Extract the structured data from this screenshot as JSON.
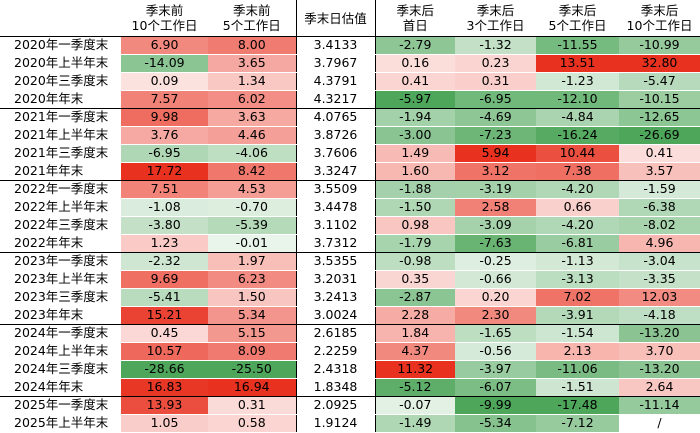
{
  "headers": [
    "",
    "季末前\n10个工作日",
    "季末前\n5个工作日",
    "季末日估值",
    "季末后\n首日",
    "季末后\n3个工作日",
    "季末后\n5个工作日",
    "季末后\n10个工作日"
  ],
  "rows": [
    {
      "label": "2020年一季度末",
      "values": [
        "6.90",
        "8.00",
        "3.4133",
        "-2.79",
        "-1.32",
        "-11.55",
        "-10.99"
      ]
    },
    {
      "label": "2020年上半年末",
      "values": [
        "-14.09",
        "3.65",
        "3.7967",
        "0.16",
        "0.23",
        "13.51",
        "32.80"
      ]
    },
    {
      "label": "2020年三季度末",
      "values": [
        "0.09",
        "1.34",
        "4.3791",
        "0.41",
        "0.31",
        "-1.23",
        "-5.47"
      ]
    },
    {
      "label": "2020年年末",
      "values": [
        "7.57",
        "6.02",
        "4.3217",
        "-5.97",
        "-6.95",
        "-12.10",
        "-10.15"
      ]
    },
    {
      "label": "2021年一季度末",
      "values": [
        "9.98",
        "3.63",
        "4.0765",
        "-1.94",
        "-4.69",
        "-4.84",
        "-12.65"
      ]
    },
    {
      "label": "2021年上半年末",
      "values": [
        "3.76",
        "4.46",
        "3.8726",
        "-3.00",
        "-7.23",
        "-16.24",
        "-26.69"
      ]
    },
    {
      "label": "2021年三季度末",
      "values": [
        "-6.95",
        "-4.06",
        "3.7606",
        "1.49",
        "5.94",
        "10.44",
        "0.41"
      ]
    },
    {
      "label": "2021年年末",
      "values": [
        "17.72",
        "8.42",
        "3.3247",
        "1.60",
        "3.12",
        "7.38",
        "3.57"
      ]
    },
    {
      "label": "2022年一季度末",
      "values": [
        "7.51",
        "4.53",
        "3.5509",
        "-1.88",
        "-3.19",
        "-4.20",
        "-1.59"
      ]
    },
    {
      "label": "2022年上半年末",
      "values": [
        "-1.08",
        "-0.70",
        "3.4478",
        "-1.50",
        "2.58",
        "0.66",
        "-6.38"
      ]
    },
    {
      "label": "2022年三季度末",
      "values": [
        "-3.80",
        "-5.39",
        "3.1102",
        "0.98",
        "-3.09",
        "-4.20",
        "-8.02"
      ]
    },
    {
      "label": "2022年年末",
      "values": [
        "1.23",
        "-0.01",
        "3.7312",
        "-1.79",
        "-7.63",
        "-6.81",
        "4.96"
      ]
    },
    {
      "label": "2023年一季度末",
      "values": [
        "-2.32",
        "1.97",
        "3.5355",
        "-0.98",
        "-0.25",
        "-1.13",
        "-3.04"
      ]
    },
    {
      "label": "2023年上半年末",
      "values": [
        "9.69",
        "6.23",
        "3.2031",
        "0.35",
        "-0.66",
        "-3.13",
        "-3.35"
      ]
    },
    {
      "label": "2023年三季度末",
      "values": [
        "-5.41",
        "1.50",
        "3.2413",
        "-2.87",
        "0.20",
        "7.02",
        "12.03"
      ]
    },
    {
      "label": "2023年年末",
      "values": [
        "15.21",
        "5.34",
        "3.0024",
        "2.28",
        "2.30",
        "-3.91",
        "-4.18"
      ]
    },
    {
      "label": "2024年一季度末",
      "values": [
        "0.45",
        "5.15",
        "2.6185",
        "1.84",
        "-1.65",
        "-1.54",
        "-13.20"
      ]
    },
    {
      "label": "2024年上半年末",
      "values": [
        "10.57",
        "8.09",
        "2.2259",
        "4.37",
        "-0.56",
        "2.13",
        "3.70"
      ]
    },
    {
      "label": "2024年三季度末",
      "values": [
        "-28.66",
        "-25.50",
        "2.4318",
        "11.32",
        "-3.97",
        "-11.06",
        "-13.20"
      ]
    },
    {
      "label": "2024年年末",
      "values": [
        "16.83",
        "16.94",
        "1.8348",
        "-5.12",
        "-6.07",
        "-1.51",
        "2.64"
      ]
    },
    {
      "label": "2025年一季度末",
      "values": [
        "13.93",
        "0.31",
        "2.0925",
        "-0.07",
        "-9.99",
        "-17.48",
        "-11.14"
      ]
    },
    {
      "label": "2025年上半年末",
      "values": [
        "1.05",
        "0.58",
        "1.9124",
        "-1.49",
        "-5.34",
        "-7.12",
        "/"
      ]
    }
  ],
  "colors": {
    "positive": "#e8311f",
    "negative": "#4ea65a",
    "neutral": "#ffffff",
    "border": "#000000"
  }
}
